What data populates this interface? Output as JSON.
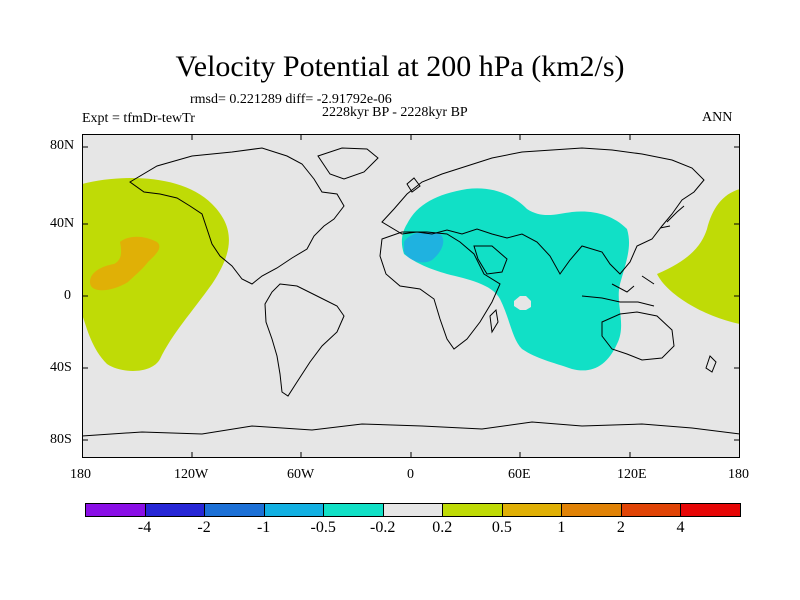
{
  "title": "Velocity Potential at 200 hPa (km2/s)",
  "stats": "rmsd= 0.221289  diff= -2.91792e-06",
  "left_label": "Expt = tfmDr-tewTr",
  "center_label": "2228kyr BP - 2228kyr BP",
  "right_label": "ANN",
  "lat_ticks": [
    "80N",
    "40N",
    "0",
    "40S",
    "80S"
  ],
  "lon_ticks": [
    "180",
    "120W",
    "60W",
    "0",
    "60E",
    "120E",
    "180"
  ],
  "colorbar": {
    "labels": [
      "-4",
      "-2",
      "-1",
      "-0.5",
      "-0.2",
      "0.2",
      "0.5",
      "1",
      "2",
      "4"
    ],
    "colors": [
      "#8a0fe6",
      "#2727d6",
      "#1c70d6",
      "#12b0e2",
      "#11e0c6",
      "#e6e6e6",
      "#bfdb06",
      "#e0b006",
      "#e08206",
      "#e04406",
      "#e60606"
    ]
  },
  "map_colors": {
    "background": "#e6e6e6",
    "positive_weak": "#bfdb06",
    "positive_mid": "#e0b006",
    "negative_weak": "#11e0c6",
    "negative_mid": "#1fb2e0"
  }
}
